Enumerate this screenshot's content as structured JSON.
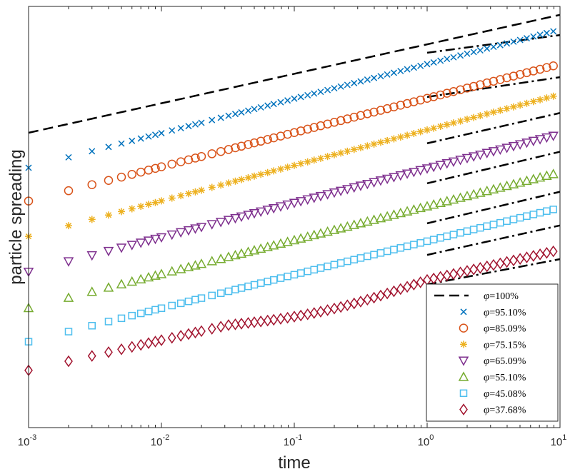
{
  "chart_data": {
    "type": "scatter",
    "title": "",
    "xlabel": "time",
    "ylabel": "particle spreading",
    "xscale": "log",
    "xlim": [
      0.001,
      10
    ],
    "ylim": [
      0,
      1
    ],
    "yticks_visible": false,
    "x_ticks": [
      {
        "base": "10",
        "exp": "-3",
        "value": 0.001
      },
      {
        "base": "10",
        "exp": "-2",
        "value": 0.01
      },
      {
        "base": "10",
        "exp": "-1",
        "value": 0.1
      },
      {
        "base": "10",
        "exp": "0",
        "value": 1
      },
      {
        "base": "10",
        "exp": "1",
        "value": 10
      }
    ],
    "legend_position": "bottom-right",
    "legend_symbol": "φ",
    "times": [
      0.001,
      0.002,
      0.003,
      0.004,
      0.005,
      0.006,
      0.007,
      0.008,
      0.009,
      0.01,
      0.012,
      0.014,
      0.016,
      0.018,
      0.02,
      0.024,
      0.028,
      0.032,
      0.036,
      0.04,
      0.045,
      0.05,
      0.056,
      0.063,
      0.07,
      0.079,
      0.089,
      0.1,
      0.112,
      0.126,
      0.141,
      0.158,
      0.178,
      0.2,
      0.224,
      0.251,
      0.282,
      0.316,
      0.355,
      0.398,
      0.447,
      0.501,
      0.562,
      0.631,
      0.708,
      0.794,
      0.891,
      1,
      1.12,
      1.26,
      1.41,
      1.58,
      1.78,
      2,
      2.24,
      2.51,
      2.82,
      3.16,
      3.55,
      3.98,
      4.47,
      5.01,
      5.62,
      6.31,
      7.08,
      7.94,
      8.91
    ],
    "reference_lines": [
      {
        "name": "100%",
        "label": "=100%",
        "style": "dashed",
        "x": [
          0.001,
          10
        ],
        "y": [
          0.7,
          0.98
        ]
      },
      {
        "style": "dashdot",
        "x": [
          1,
          10
        ],
        "y": [
          0.89,
          0.932
        ]
      },
      {
        "style": "dashdot",
        "x": [
          1,
          10
        ],
        "y": [
          0.785,
          0.832
        ]
      },
      {
        "style": "dashdot",
        "x": [
          1,
          10
        ],
        "y": [
          0.675,
          0.747
        ]
      },
      {
        "style": "dashdot",
        "x": [
          1,
          10
        ],
        "y": [
          0.58,
          0.655
        ]
      },
      {
        "style": "dashdot",
        "x": [
          1,
          10
        ],
        "y": [
          0.485,
          0.56
        ]
      },
      {
        "style": "dashdot",
        "x": [
          1,
          10
        ],
        "y": [
          0.41,
          0.48
        ]
      },
      {
        "style": "dashdot",
        "x": [
          1,
          10
        ],
        "y": [
          0.34,
          0.4
        ]
      }
    ],
    "series": [
      {
        "name": "95.10%",
        "label": "=95.10%",
        "marker": "x",
        "color": "#0072BD",
        "y_start": 0.617,
        "y_end": 0.945,
        "kink": 0
      },
      {
        "name": "85.09%",
        "label": "=85.09%",
        "marker": "circle",
        "color": "#D95319",
        "y_start": 0.538,
        "y_end": 0.863,
        "kink": 0
      },
      {
        "name": "75.15%",
        "label": "=75.15%",
        "marker": "asterisk",
        "color": "#EDB120",
        "y_start": 0.454,
        "y_end": 0.791,
        "kink": 0
      },
      {
        "name": "65.09%",
        "label": "=65.09%",
        "marker": "triangle-down",
        "color": "#7E2F8E",
        "y_start": 0.37,
        "y_end": 0.697,
        "kink": 0
      },
      {
        "name": "55.10%",
        "label": "=55.10%",
        "marker": "triangle-up",
        "color": "#77AC30",
        "y_start": 0.284,
        "y_end": 0.606,
        "kink": 0
      },
      {
        "name": "45.08%",
        "label": "=45.08%",
        "marker": "square",
        "color": "#4DBEEE",
        "y_start": 0.204,
        "y_end": 0.522,
        "kink": 0
      },
      {
        "name": "37.68%",
        "label": "=37.68%",
        "marker": "diamond",
        "color": "#A2142F",
        "y_start": 0.136,
        "y_end": 0.422,
        "kink": 1
      }
    ]
  }
}
